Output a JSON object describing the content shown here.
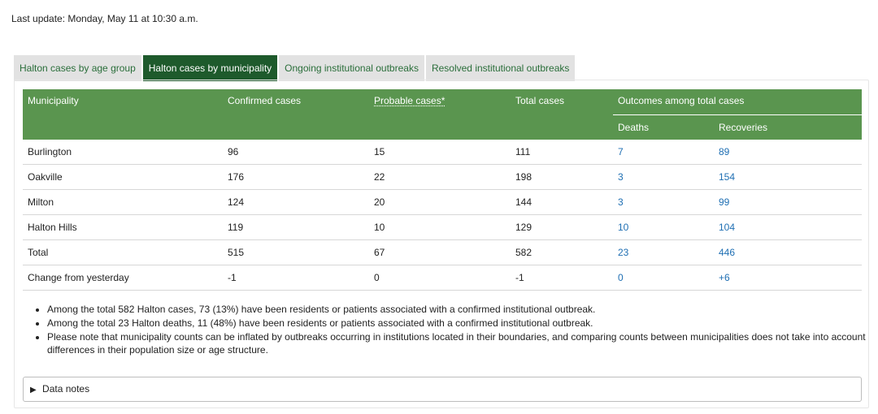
{
  "last_update": "Last update: Monday, May 11 at 10:30 a.m.",
  "tabs": [
    {
      "label": "Halton cases by age group",
      "active": false
    },
    {
      "label": "Halton cases by municipality",
      "active": true
    },
    {
      "label": "Ongoing institutional outbreaks",
      "active": false
    },
    {
      "label": "Resolved institutional outbreaks",
      "active": false
    }
  ],
  "table": {
    "headers": {
      "municipality": "Municipality",
      "confirmed": "Confirmed cases",
      "probable": "Probable cases*",
      "total": "Total cases",
      "outcomes": "Outcomes among total cases",
      "deaths": "Deaths",
      "recoveries": "Recoveries"
    },
    "rows": [
      {
        "municipality": "Burlington",
        "confirmed": "96",
        "probable": "15",
        "total": "111",
        "deaths": "7",
        "recoveries": "89"
      },
      {
        "municipality": "Oakville",
        "confirmed": "176",
        "probable": "22",
        "total": "198",
        "deaths": "3",
        "recoveries": "154"
      },
      {
        "municipality": "Milton",
        "confirmed": "124",
        "probable": "20",
        "total": "144",
        "deaths": "3",
        "recoveries": "99"
      },
      {
        "municipality": "Halton Hills",
        "confirmed": "119",
        "probable": "10",
        "total": "129",
        "deaths": "10",
        "recoveries": "104"
      },
      {
        "municipality": "Total",
        "confirmed": "515",
        "probable": "67",
        "total": "582",
        "deaths": "23",
        "recoveries": "446"
      },
      {
        "municipality": "Change from yesterday",
        "confirmed": "-1",
        "probable": "0",
        "total": "-1",
        "deaths": "0",
        "recoveries": "+6"
      }
    ]
  },
  "notes": [
    "Among the total 582 Halton cases, 73 (13%) have been residents or patients associated with a confirmed institutional outbreak.",
    "Among the total 23 Halton deaths, 11 (48%) have been residents or patients associated with a confirmed institutional outbreak.",
    "Please note that municipality counts can be inflated by outbreaks occurring in institutions located in their boundaries, and comparing counts between municipalities does not take into account differences in their population size or age structure."
  ],
  "data_notes": {
    "label": "Data notes",
    "icon": "triangle-right-icon"
  },
  "colors": {
    "header_green": "#5a954f",
    "active_tab": "#1e5a2c",
    "link_blue": "#1f6fb3"
  }
}
